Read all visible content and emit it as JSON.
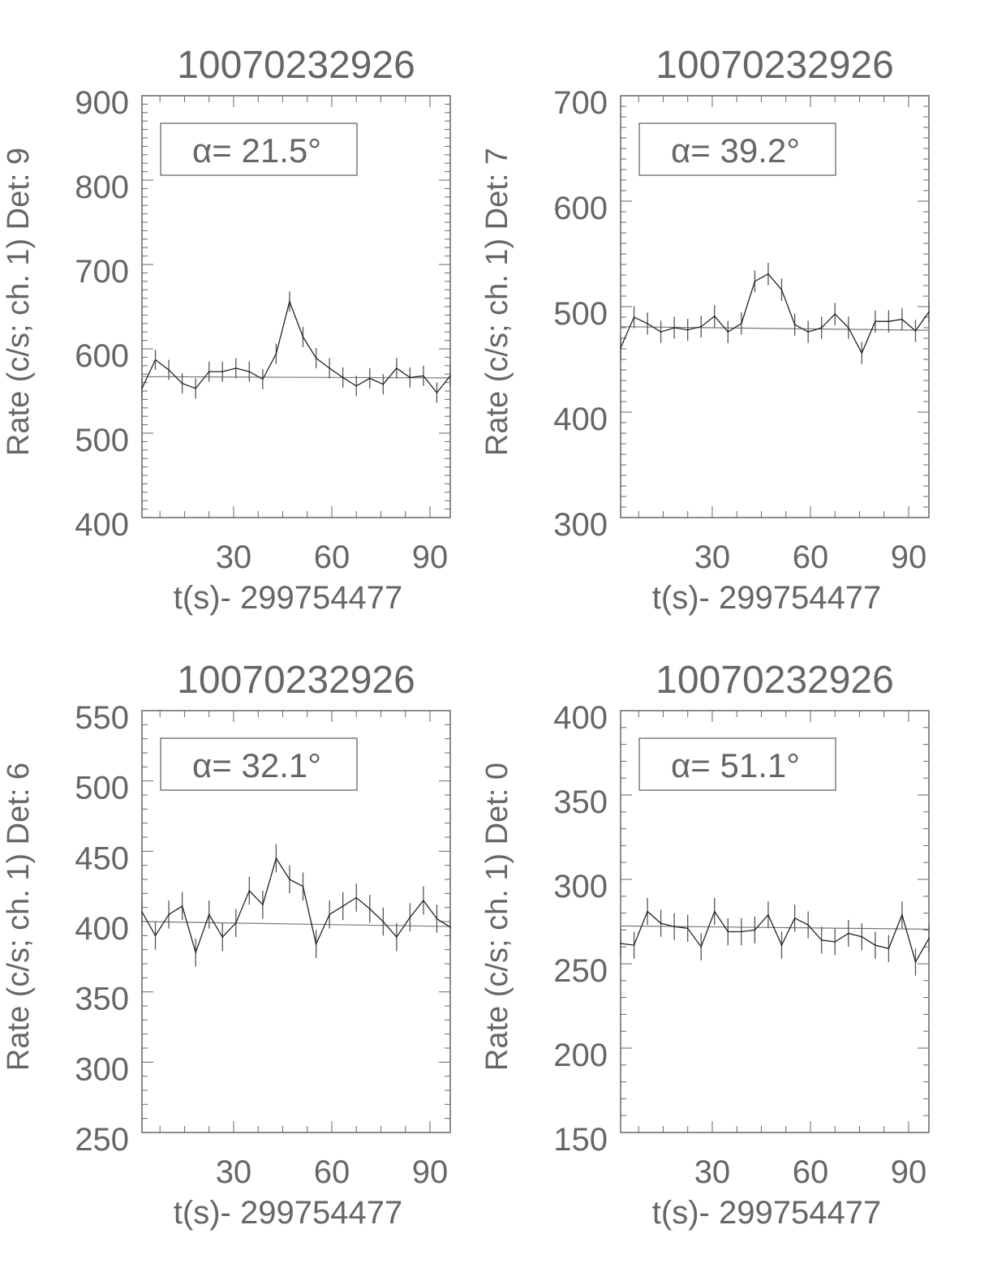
{
  "chart_data": [
    {
      "type": "line",
      "title": "10070232926",
      "xlabel": "t(s)- 299754477",
      "ylabel": "Rate (c/s; ch. 1) Det: 9",
      "annotation": "α= 21.5°",
      "xlim": [
        2,
        96.2
      ],
      "ylim": [
        400,
        900
      ],
      "xticks": [
        30,
        60,
        90
      ],
      "yticks": [
        400,
        500,
        600,
        700,
        800,
        900
      ],
      "x": [
        2.0,
        6.1,
        10.2,
        14.3,
        18.4,
        22.5,
        26.6,
        30.7,
        34.8,
        38.9,
        43.0,
        47.1,
        51.2,
        55.2,
        59.3,
        63.4,
        67.5,
        71.6,
        75.7,
        79.8,
        83.9,
        88.0,
        92.1,
        96.2
      ],
      "y": [
        553,
        587,
        575,
        559,
        553,
        573,
        573,
        577,
        573,
        564,
        594,
        656,
        614,
        589,
        577,
        566,
        556,
        565,
        558,
        577,
        566,
        568,
        548,
        568
      ],
      "yerr": 12,
      "background": [
        567,
        565.5
      ]
    },
    {
      "type": "line",
      "title": "10070232926",
      "xlabel": "t(s)- 299754477",
      "ylabel": "Rate (c/s; ch. 1) Det: 7",
      "annotation": "α= 39.2°",
      "xlim": [
        2,
        96.2
      ],
      "ylim": [
        300,
        700
      ],
      "xticks": [
        30,
        60,
        90
      ],
      "yticks": [
        300,
        400,
        500,
        600,
        700
      ],
      "x": [
        2.0,
        6.1,
        10.2,
        14.3,
        18.4,
        22.5,
        26.6,
        30.7,
        34.8,
        38.9,
        43.0,
        47.1,
        51.2,
        55.2,
        59.3,
        63.4,
        67.5,
        71.6,
        75.7,
        79.8,
        83.9,
        88.0,
        92.1,
        96.2
      ],
      "y": [
        461,
        490,
        484,
        476,
        480,
        478,
        481,
        491,
        476,
        484,
        524,
        531,
        516,
        483,
        476,
        480,
        493,
        480,
        456,
        486,
        486,
        488,
        477,
        495
      ],
      "yerr": 10.5,
      "background": [
        481,
        477.6
      ]
    },
    {
      "type": "line",
      "title": "10070232926",
      "xlabel": "t(s)- 299754477",
      "ylabel": "Rate (c/s; ch. 1) Det: 6",
      "annotation": "α= 32.1°",
      "xlim": [
        2,
        96.2
      ],
      "ylim": [
        250,
        550
      ],
      "xticks": [
        30,
        60,
        90
      ],
      "yticks": [
        250,
        300,
        350,
        400,
        450,
        500,
        550
      ],
      "x": [
        2.0,
        6.1,
        10.2,
        14.3,
        18.4,
        22.5,
        26.6,
        30.7,
        34.8,
        38.9,
        43.0,
        47.1,
        51.2,
        55.2,
        59.3,
        63.4,
        67.5,
        71.6,
        75.7,
        79.8,
        83.9,
        88.0,
        92.1,
        96.2
      ],
      "y": [
        407,
        390,
        405,
        411,
        378,
        405,
        389,
        399,
        422,
        412,
        445,
        430,
        425,
        384,
        405,
        411,
        417,
        409,
        400,
        389,
        403,
        415,
        402,
        396
      ],
      "yerr": 10,
      "background": [
        400,
        396.5
      ]
    },
    {
      "type": "line",
      "title": "10070232926",
      "xlabel": "t(s)- 299754477",
      "ylabel": "Rate (c/s; ch. 1) Det: 0",
      "annotation": "α= 51.1°",
      "xlim": [
        2,
        96.2
      ],
      "ylim": [
        150,
        400
      ],
      "xticks": [
        30,
        60,
        90
      ],
      "yticks": [
        150,
        200,
        250,
        300,
        350,
        400
      ],
      "x": [
        2.0,
        6.1,
        10.2,
        14.3,
        18.4,
        22.5,
        26.6,
        30.7,
        34.8,
        38.9,
        43.0,
        47.1,
        51.2,
        55.2,
        59.3,
        63.4,
        67.5,
        71.6,
        75.7,
        79.8,
        83.9,
        88.0,
        92.1,
        96.2
      ],
      "y": [
        262,
        261,
        281,
        274,
        272,
        271,
        260,
        281,
        269,
        269,
        270,
        279,
        261,
        277,
        273,
        264,
        263,
        268,
        266,
        261,
        259,
        279,
        251,
        265
      ],
      "yerr": 8,
      "background": [
        272.4,
        270.5
      ]
    }
  ],
  "colors": {
    "data_line": "#222222",
    "axes": "#666666",
    "text": "#666666",
    "background_fit": "#666666"
  }
}
